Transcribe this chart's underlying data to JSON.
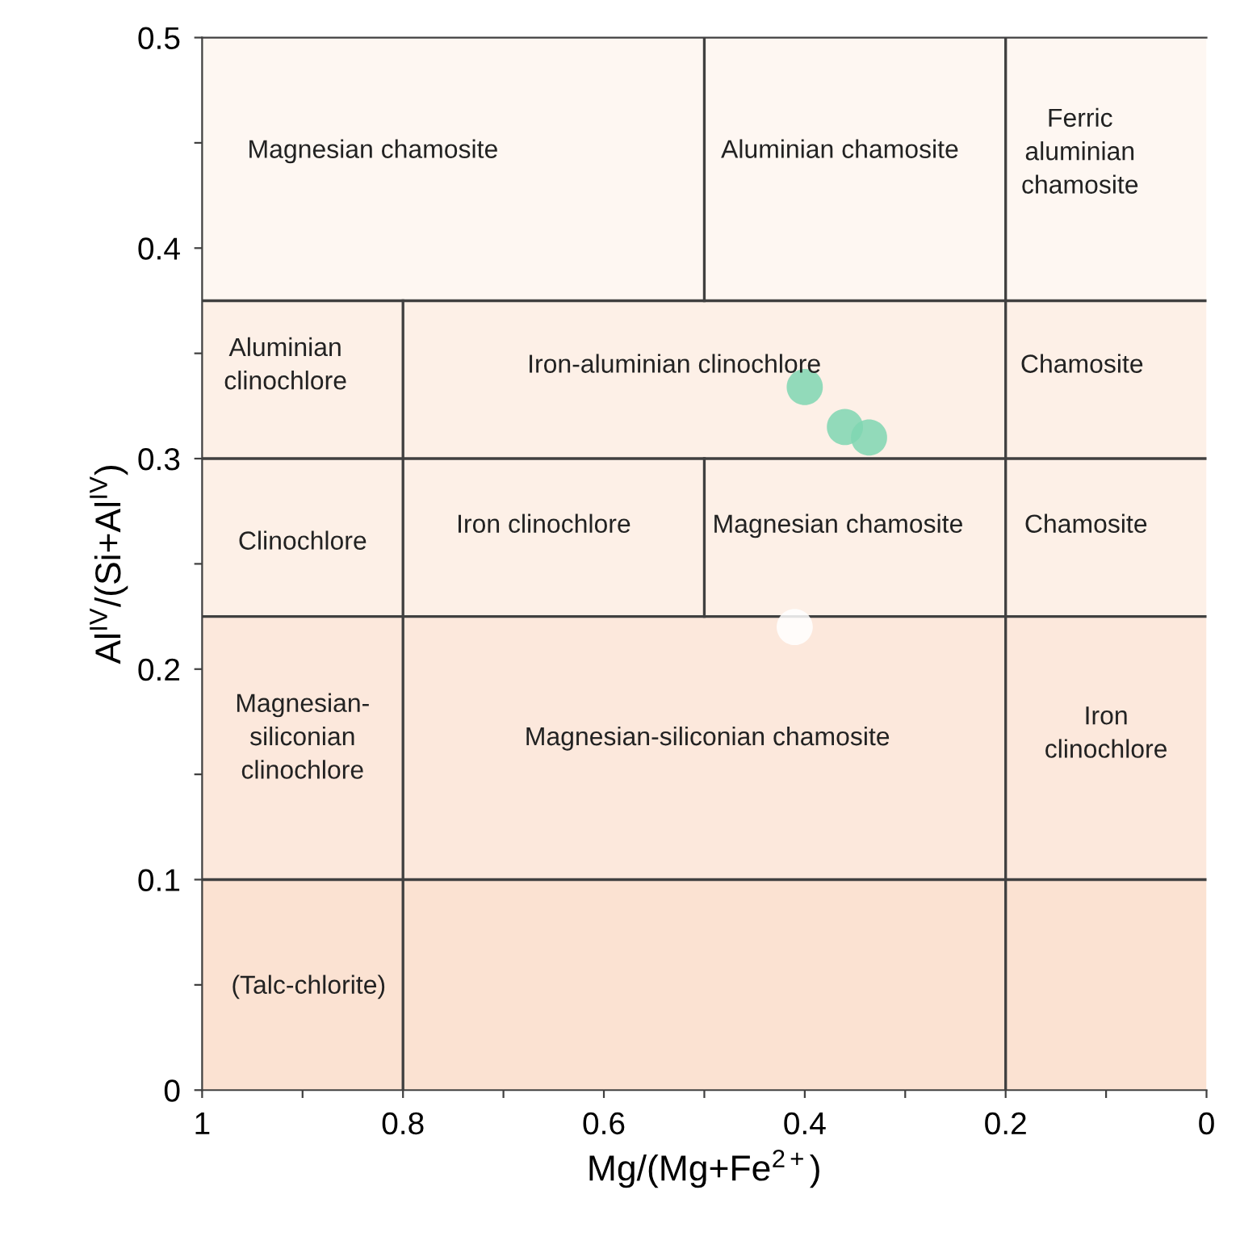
{
  "chart_data": {
    "type": "scatter",
    "xlabel": "Mg/(Mg+Fe$^{2+}$)",
    "ylabel": "Al$^{IV}$/(Si+Al$^{IV}$)",
    "xlim": [
      1,
      0
    ],
    "ylim": [
      0,
      0.5
    ],
    "xticks": [
      1,
      {
        "value": 0.9,
        "label": null
      },
      0.8,
      {
        "value": 0.7,
        "label": null
      },
      0.6,
      {
        "value": 0.5,
        "label": null
      },
      0.4,
      {
        "value": 0.3,
        "label": null
      },
      0.2,
      {
        "value": 0.1,
        "label": null
      },
      0
    ],
    "yticks": [
      0,
      {
        "value": 0.05,
        "label": null
      },
      0.1,
      {
        "value": 0.15,
        "label": null
      },
      0.2,
      {
        "value": 0.25,
        "label": null
      },
      0.3,
      {
        "value": 0.35,
        "label": null
      },
      0.4,
      {
        "value": 0.45,
        "label": null
      },
      0.5
    ],
    "marker": "circle",
    "bands": [
      {
        "axis": "y",
        "from": 0,
        "to": 0.1,
        "color": "#fbe2d2"
      },
      {
        "axis": "y",
        "from": 0.1,
        "to": 0.225,
        "color": "#fce8dc"
      },
      {
        "axis": "y",
        "from": 0.225,
        "to": 0.375,
        "color": "#fdf0e7"
      },
      {
        "axis": "y",
        "from": 0.375,
        "to": 0.5,
        "color": "#fef7f2"
      }
    ],
    "series": [
      {
        "type": "line",
        "color": "#404040",
        "marker": "none",
        "x": [
          1,
          0
        ],
        "values": [
          0.375,
          0.375
        ]
      },
      {
        "type": "line",
        "color": "#404040",
        "marker": "none",
        "x": [
          1,
          0
        ],
        "values": [
          0.3,
          0.3
        ]
      },
      {
        "type": "line",
        "color": "#404040",
        "marker": "none",
        "x": [
          1,
          0
        ],
        "values": [
          0.225,
          0.225
        ]
      },
      {
        "type": "line",
        "color": "#404040",
        "marker": "none",
        "x": [
          1,
          0
        ],
        "values": [
          0.1,
          0.1
        ]
      },
      {
        "type": "line",
        "color": "#404040",
        "marker": "none",
        "x": [
          0.8,
          0.8
        ],
        "values": [
          0,
          0.375
        ]
      },
      {
        "type": "line",
        "color": "#404040",
        "marker": "none",
        "x": [
          0.5,
          0.5
        ],
        "values": [
          0.375,
          0.5
        ]
      },
      {
        "type": "line",
        "color": "#404040",
        "marker": "none",
        "x": [
          0.5,
          0.5
        ],
        "values": [
          0.225,
          0.3
        ]
      },
      {
        "type": "line",
        "color": "#404040",
        "marker": "none",
        "x": [
          0.2,
          0.2
        ],
        "values": [
          0,
          0.5
        ]
      },
      {
        "color": "#7fd6b2",
        "x": [
          0.4,
          0.36,
          0.336
        ],
        "values": [
          0.334,
          0.315,
          0.31
        ]
      },
      {
        "color": "#ffffff",
        "x": [
          0.41
        ],
        "values": [
          0.22
        ]
      }
    ],
    "annotations": [
      "Magnesian chamosite",
      "Aluminian chamosite",
      "Ferric\naluminian\nchamosite",
      "Aluminian\nclinochlore",
      "Iron-aluminian clinochlore",
      "Chamosite",
      "Clinochlore",
      "Iron clinochlore",
      "Magnesian chamosite",
      "Chamosite",
      "Magnesian-\nsiliconian\nclinochlore",
      "Magnesian-siliconian chamosite",
      "Iron\nclinochlore",
      "(Talc-chlorite)"
    ]
  }
}
